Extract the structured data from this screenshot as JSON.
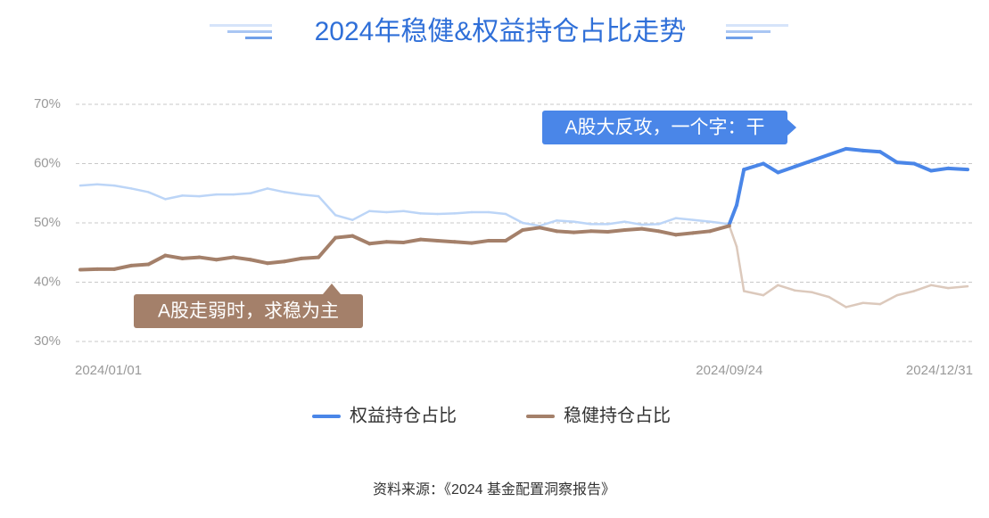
{
  "chart_data": {
    "type": "line",
    "title": "2024年稳健&权益持仓占比走势",
    "source": "资料来源：《2024 基金配置洞察报告》",
    "x": [
      "2024/01/01",
      "2024/01/08",
      "2024/01/15",
      "2024/01/22",
      "2024/01/29",
      "2024/02/05",
      "2024/02/12",
      "2024/02/19",
      "2024/02/26",
      "2024/03/04",
      "2024/03/11",
      "2024/03/18",
      "2024/03/25",
      "2024/04/01",
      "2024/04/08",
      "2024/04/15",
      "2024/04/22",
      "2024/04/29",
      "2024/05/06",
      "2024/05/13",
      "2024/05/20",
      "2024/05/27",
      "2024/06/03",
      "2024/06/10",
      "2024/06/17",
      "2024/06/24",
      "2024/07/01",
      "2024/07/08",
      "2024/07/15",
      "2024/07/22",
      "2024/07/29",
      "2024/08/05",
      "2024/08/12",
      "2024/08/19",
      "2024/08/26",
      "2024/09/02",
      "2024/09/09",
      "2024/09/16",
      "2024/09/24",
      "2024/09/27",
      "2024/09/30",
      "2024/10/08",
      "2024/10/14",
      "2024/10/21",
      "2024/10/28",
      "2024/11/04",
      "2024/11/11",
      "2024/11/18",
      "2024/11/25",
      "2024/12/02",
      "2024/12/09",
      "2024/12/16",
      "2024/12/23",
      "2024/12/31"
    ],
    "series": [
      {
        "name": "权益持仓占比",
        "color": "#4a86e8",
        "faded_color": "#bcd5f7",
        "emphasis": [
          "2024/09/24",
          "2024/12/31"
        ],
        "values": [
          56.3,
          56.5,
          56.3,
          55.8,
          55.2,
          54.0,
          54.6,
          54.5,
          54.8,
          54.8,
          55.0,
          55.8,
          55.2,
          54.8,
          54.5,
          51.3,
          50.5,
          52.0,
          51.8,
          52.0,
          51.6,
          51.5,
          51.6,
          51.8,
          51.8,
          51.5,
          50.0,
          49.5,
          50.4,
          50.2,
          49.8,
          49.8,
          50.2,
          49.7,
          49.8,
          50.8,
          50.5,
          50.2,
          49.8,
          53.0,
          59.0,
          60.0,
          58.5,
          59.5,
          60.5,
          61.5,
          62.5,
          62.2,
          62.0,
          60.2,
          60.0,
          58.8,
          59.2,
          59.0
        ]
      },
      {
        "name": "稳健持仓占比",
        "color": "#a4806a",
        "faded_color": "#dcc9bc",
        "emphasis": [
          "2024/01/01",
          "2024/09/24"
        ],
        "values": [
          42.1,
          42.2,
          42.2,
          42.8,
          43.0,
          44.5,
          44.0,
          44.2,
          43.8,
          44.2,
          43.8,
          43.2,
          43.5,
          44.0,
          44.2,
          47.5,
          47.8,
          46.5,
          46.8,
          46.7,
          47.2,
          47.0,
          46.8,
          46.6,
          47.0,
          47.0,
          48.8,
          49.2,
          48.6,
          48.4,
          48.6,
          48.5,
          48.8,
          49.0,
          48.6,
          48.0,
          48.3,
          48.6,
          49.5,
          46.0,
          38.5,
          37.8,
          39.5,
          38.6,
          38.3,
          37.5,
          35.8,
          36.5,
          36.3,
          37.8,
          38.5,
          39.5,
          39.0,
          39.3
        ]
      }
    ],
    "ylim": [
      30,
      70
    ],
    "yticks": [
      {
        "value": 30,
        "label": "30%"
      },
      {
        "value": 40,
        "label": "40%"
      },
      {
        "value": 50,
        "label": "50%"
      },
      {
        "value": 60,
        "label": "60%"
      },
      {
        "value": 70,
        "label": "70%"
      }
    ],
    "xticks": [
      "2024/01/01",
      "2024/09/24",
      "2024/12/31"
    ],
    "grid": true,
    "annotations": [
      {
        "text": "A股大反攻，一个字：干",
        "color": "#4a86e8"
      },
      {
        "text": "A股走弱时，求稳为主",
        "color": "#a4806a"
      }
    ]
  }
}
